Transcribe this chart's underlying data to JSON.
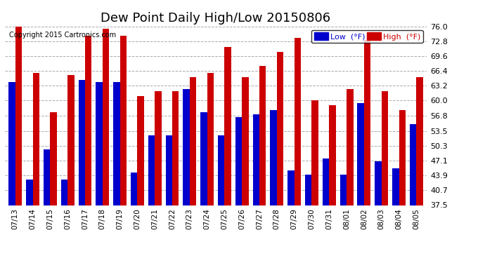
{
  "title": "Dew Point Daily High/Low 20150806",
  "copyright": "Copyright 2015 Cartronics.com",
  "categories": [
    "07/13",
    "07/14",
    "07/15",
    "07/16",
    "07/17",
    "07/18",
    "07/19",
    "07/20",
    "07/21",
    "07/22",
    "07/23",
    "07/24",
    "07/25",
    "07/26",
    "07/27",
    "07/28",
    "07/29",
    "07/30",
    "07/31",
    "08/01",
    "08/02",
    "08/03",
    "08/04",
    "08/05"
  ],
  "low_values": [
    64.0,
    43.0,
    49.5,
    43.0,
    64.5,
    64.0,
    64.0,
    44.5,
    52.5,
    52.5,
    62.5,
    57.5,
    52.5,
    56.5,
    57.0,
    58.0,
    45.0,
    44.0,
    47.5,
    44.0,
    59.5,
    47.0,
    45.5,
    55.0
  ],
  "high_values": [
    76.5,
    66.0,
    57.5,
    65.5,
    74.0,
    75.5,
    74.0,
    61.0,
    62.0,
    62.0,
    65.0,
    66.0,
    71.5,
    65.0,
    67.5,
    70.5,
    73.5,
    60.0,
    59.0,
    62.5,
    73.0,
    62.0,
    58.0,
    65.0
  ],
  "low_color": "#0000cc",
  "high_color": "#cc0000",
  "bg_color": "#ffffff",
  "grid_color": "#aaaaaa",
  "ymin": 37.5,
  "ymax": 76.0,
  "yticks": [
    37.5,
    40.7,
    43.9,
    47.1,
    50.3,
    53.5,
    56.8,
    60.0,
    63.2,
    66.4,
    69.6,
    72.8,
    76.0
  ],
  "title_fontsize": 13,
  "legend_low_label": "Low  (°F)",
  "legend_high_label": "High  (°F)"
}
